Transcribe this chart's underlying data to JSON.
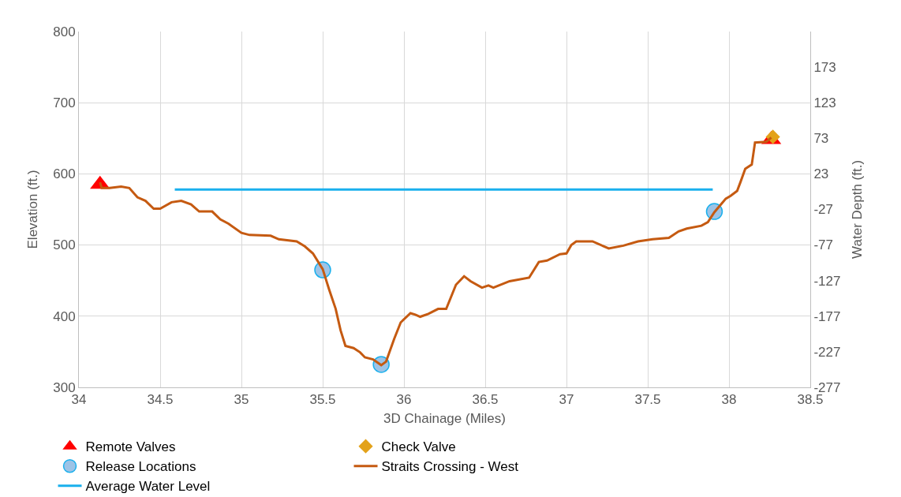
{
  "chart_data": {
    "type": "line",
    "xlabel": "3D Chainage (Miles)",
    "ylabel": "Elevation (ft.)",
    "y2label": "Water Depth (ft.)",
    "xlim": [
      34,
      38.5
    ],
    "xticks": [
      34,
      34.5,
      35,
      35.5,
      36,
      36.5,
      37,
      37.5,
      38,
      38.5
    ],
    "ylim": [
      300,
      800
    ],
    "yticks": [
      300,
      400,
      500,
      600,
      700,
      800
    ],
    "y2lim": [
      -277,
      223
    ],
    "y2ticks": [
      -277,
      -227,
      -177,
      -127,
      -77,
      -27,
      23,
      73,
      123,
      173
    ],
    "grid": true,
    "legend": "bottom",
    "series": [
      {
        "name": "Remote Valves",
        "type": "scatter",
        "marker": "triangle",
        "color": "#ff0000",
        "x": [
          34.13,
          38.26
        ],
        "values": [
          585,
          648
        ]
      },
      {
        "name": "Check Valve",
        "type": "scatter",
        "marker": "diamond",
        "color": "#e3a21a",
        "x": [
          38.27
        ],
        "values": [
          652
        ]
      },
      {
        "name": "Release Locations",
        "type": "scatter",
        "marker": "circle",
        "color": "#9dc3e6",
        "x": [
          35.5,
          35.86,
          37.91
        ],
        "values": [
          465,
          332,
          547
        ]
      },
      {
        "name": "Straits Crossing - West",
        "color": "#c55a11",
        "x": [
          34.13,
          34.14,
          34.19,
          34.26,
          34.31,
          34.36,
          34.41,
          34.46,
          34.5,
          34.57,
          34.63,
          34.69,
          34.74,
          34.82,
          34.87,
          34.92,
          35.0,
          35.05,
          35.18,
          35.23,
          35.34,
          35.39,
          35.44,
          35.5,
          35.54,
          35.58,
          35.61,
          35.64,
          35.69,
          35.73,
          35.76,
          35.81,
          35.86,
          35.89,
          35.94,
          35.98,
          36.04,
          36.07,
          36.1,
          36.15,
          36.21,
          36.26,
          36.32,
          36.37,
          36.41,
          36.48,
          36.52,
          36.55,
          36.65,
          36.77,
          36.83,
          36.88,
          36.96,
          37.0,
          37.03,
          37.06,
          37.16,
          37.26,
          37.35,
          37.44,
          37.53,
          37.63,
          37.69,
          37.74,
          37.83,
          37.87,
          37.91,
          37.98,
          38.01,
          38.05,
          38.07,
          38.1,
          38.14,
          38.16,
          38.23,
          38.26
        ],
        "values": [
          588,
          580,
          580,
          582,
          580,
          567,
          562,
          551,
          551,
          560,
          562,
          557,
          547,
          547,
          536,
          530,
          517,
          514,
          513,
          508,
          505,
          498,
          488,
          466,
          437,
          410,
          380,
          358,
          355,
          349,
          342,
          339,
          331,
          336,
          368,
          391,
          404,
          402,
          399,
          403,
          410,
          410,
          444,
          456,
          449,
          440,
          443,
          440,
          449,
          454,
          476,
          478,
          487,
          488,
          500,
          505,
          505,
          495,
          499,
          505,
          508,
          510,
          519,
          523,
          527,
          532,
          546,
          565,
          569,
          576,
          588,
          607,
          613,
          644,
          645,
          651
        ]
      },
      {
        "name": "Average Water Level",
        "color": "#1ab0ed",
        "x": [
          34.59,
          37.9
        ],
        "values": [
          578,
          578
        ]
      }
    ]
  }
}
